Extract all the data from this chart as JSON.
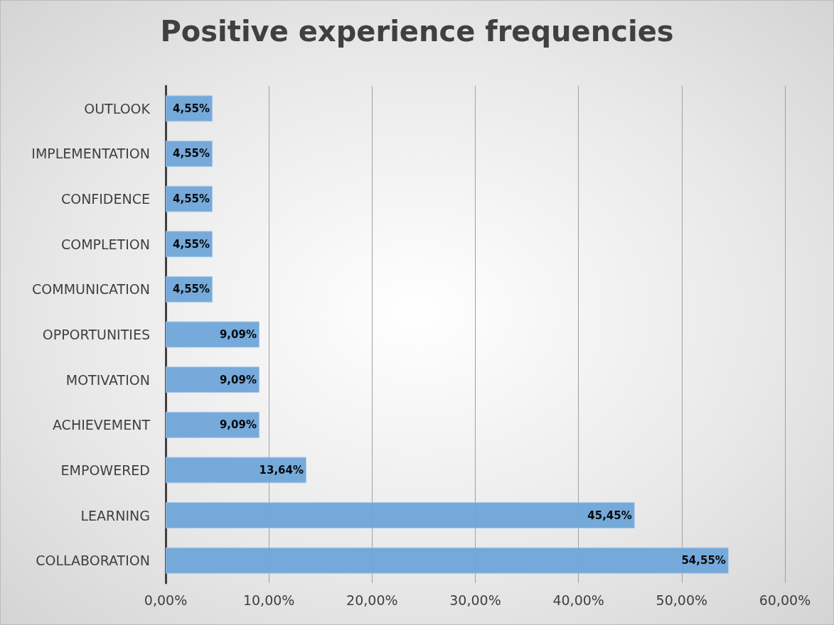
{
  "chart_data": {
    "type": "bar",
    "orientation": "horizontal",
    "title": "Positive experience frequencies",
    "categories": [
      "OUTLOOK",
      "IMPLEMENTATION",
      "CONFIDENCE",
      "COMPLETION",
      "COMMUNICATION",
      "OPPORTUNITIES",
      "MOTIVATION",
      "ACHIEVEMENT",
      "EMPOWERED",
      "LEARNING",
      "COLLABORATION"
    ],
    "values": [
      4.55,
      4.55,
      4.55,
      4.55,
      4.55,
      9.09,
      9.09,
      9.09,
      13.64,
      45.45,
      54.55
    ],
    "value_labels": [
      "4,55%",
      "4,55%",
      "4,55%",
      "4,55%",
      "4,55%",
      "9,09%",
      "9,09%",
      "9,09%",
      "13,64%",
      "45,45%",
      "54,55%"
    ],
    "color": "#6fa5d9",
    "xlim": [
      0,
      60
    ],
    "xticks": [
      {
        "value": 0,
        "label": "0,00%"
      },
      {
        "value": 10,
        "label": "10,00%"
      },
      {
        "value": 20,
        "label": "20,00%"
      },
      {
        "value": 30,
        "label": "30,00%"
      },
      {
        "value": 40,
        "label": "40,00%"
      },
      {
        "value": 50,
        "label": "50,00%"
      },
      {
        "value": 60,
        "label": "60,00%"
      }
    ],
    "grid": "x"
  }
}
